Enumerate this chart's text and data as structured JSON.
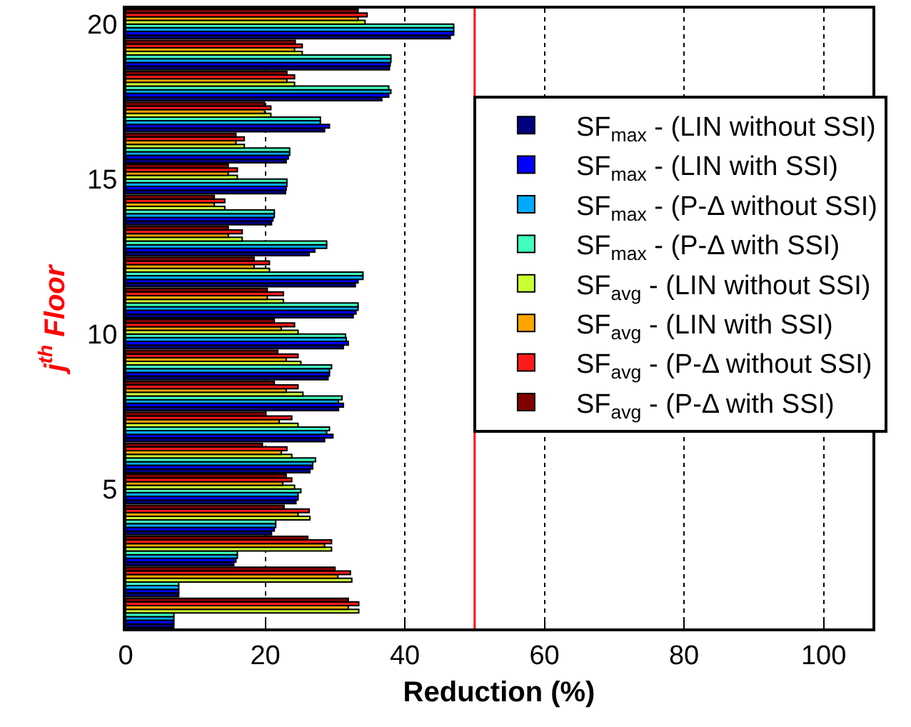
{
  "chart_data": {
    "type": "bar",
    "orientation": "horizontal",
    "xlabel": "Reduction (%)",
    "ylabel": "j$^{th}$ Floor",
    "x": [
      1,
      2,
      3,
      4,
      5,
      6,
      7,
      8,
      9,
      10,
      11,
      12,
      13,
      14,
      15,
      16,
      17,
      18,
      19,
      20
    ],
    "xlim": [
      0,
      107
    ],
    "xticks": [
      0,
      20,
      40,
      60,
      80,
      100
    ],
    "ylim": [
      0.5,
      20.5
    ],
    "yticks": [
      5,
      10,
      15,
      20
    ],
    "grid": "x",
    "legend": "top right",
    "ref_lines": [
      {
        "axis": "x",
        "value": 50,
        "color": "#ff0000",
        "line_style": "solid"
      }
    ],
    "series": [
      {
        "name": "SF$_{max}$ - (LIN without SSI)",
        "color": "#000080",
        "values": [
          6.9,
          7.6,
          15.5,
          20.9,
          24.4,
          26.4,
          28.5,
          30.5,
          29,
          31.2,
          32.6,
          32.9,
          26.3,
          20.9,
          22.9,
          23,
          28.5,
          36.7,
          37.8,
          46.5
        ]
      },
      {
        "name": "SF$_{max}$ - (LIN with SSI)",
        "color": "#0000ff",
        "values": [
          6.9,
          7.6,
          15.8,
          21.3,
          24.7,
          26.8,
          29.7,
          31.2,
          29.2,
          31.9,
          33,
          33.3,
          27.1,
          21.1,
          23,
          23.3,
          29.2,
          37.7,
          37.9,
          47
        ]
      },
      {
        "name": "SF$_{max}$ - (P-Δ without SSI)",
        "color": "#00aaff",
        "values": [
          6.9,
          7.6,
          16,
          21.5,
          24.7,
          26.8,
          28.8,
          30.5,
          29.2,
          31.6,
          33.3,
          34,
          28.8,
          21.3,
          23.1,
          23.5,
          27.9,
          38,
          38,
          47
        ]
      },
      {
        "name": "SF$_{max}$ - (P-Δ with SSI)",
        "color": "#40ffc0",
        "values": [
          6.9,
          7.6,
          16,
          21.5,
          25.1,
          27.2,
          29.2,
          31,
          29.5,
          31.5,
          33.3,
          34,
          28.8,
          21.3,
          23.1,
          23.5,
          27.9,
          37.7,
          38,
          47
        ]
      },
      {
        "name": "SF$_{avg}$ - (LIN without SSI)",
        "color": "#ccff33",
        "values": [
          33.4,
          32.4,
          29.5,
          26.4,
          24.2,
          23.8,
          24.7,
          25.4,
          25.1,
          24.7,
          22.6,
          20.6,
          16.7,
          14.2,
          16,
          17,
          20.8,
          24.2,
          25.3,
          34.3
        ]
      },
      {
        "name": "SF$_{avg}$ - (LIN with SSI)",
        "color": "#ffa500",
        "values": [
          31.9,
          30.4,
          28.5,
          24.7,
          22.5,
          22.3,
          22,
          23,
          23,
          22.3,
          20.3,
          18.4,
          14.7,
          12.7,
          14.7,
          15.8,
          19.9,
          23.1,
          24.2,
          33.3
        ]
      },
      {
        "name": "SF$_{avg}$ - (P-Δ without SSI)",
        "color": "#ff1a1a",
        "values": [
          33.4,
          32.2,
          29.5,
          26.3,
          23.8,
          23.1,
          23.8,
          24.7,
          24.7,
          24.2,
          22.6,
          20.6,
          16.7,
          14.2,
          16,
          17,
          20.8,
          24.2,
          25.3,
          34.6
        ]
      },
      {
        "name": "SF$_{avg}$ - (P-Δ with SSI)",
        "color": "#800000",
        "values": [
          31.9,
          30,
          26.1,
          22.7,
          23,
          19.6,
          20.1,
          21.3,
          21.8,
          21.3,
          20.3,
          18.4,
          14.7,
          12.7,
          14.7,
          15.8,
          19.9,
          23.1,
          24.3,
          33.3
        ]
      }
    ]
  }
}
